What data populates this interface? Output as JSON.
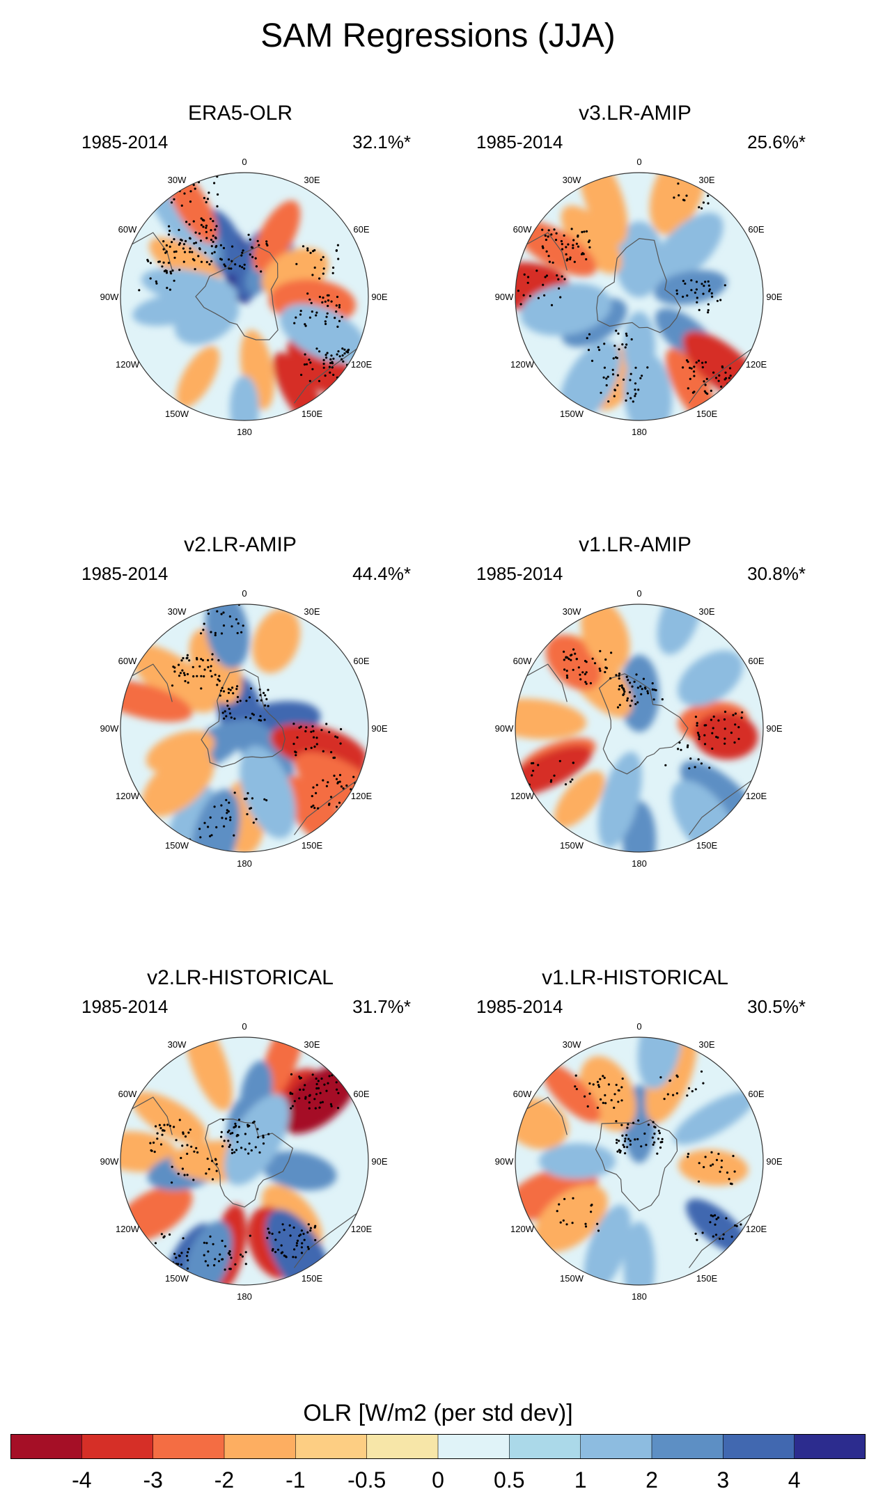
{
  "figure_title": "SAM Regressions (JJA)",
  "colors": {
    "levels": [
      "#a50f26",
      "#d62f27",
      "#f46d43",
      "#fdae61",
      "#fdce83",
      "#f7e6a8",
      "#e0f3f8",
      "#abd9e9",
      "#8dbce0",
      "#5d8fc4",
      "#4168b0",
      "#2c2c8e"
    ],
    "coast": "#555555",
    "stipple": "#000000"
  },
  "panels": [
    {
      "title": "ERA5-OLR",
      "period": "1985-2014",
      "variance": "32.1%*",
      "blobs": [
        [
          -12,
          0.25,
          4
        ],
        [
          20,
          0.28,
          3
        ],
        [
          40,
          0.32,
          2
        ],
        [
          -24,
          0.48,
          3
        ],
        [
          -35,
          0.72,
          2
        ],
        [
          -40,
          0.78,
          1
        ],
        [
          28,
          0.55,
          -2
        ],
        [
          65,
          0.45,
          -1
        ],
        [
          95,
          0.55,
          -2
        ],
        [
          132,
          0.82,
          -3
        ],
        [
          150,
          0.88,
          -3
        ],
        [
          -60,
          0.55,
          -1
        ],
        [
          170,
          0.6,
          -1
        ],
        [
          -150,
          0.75,
          -1
        ],
        [
          180,
          0.9,
          1
        ],
        [
          -100,
          0.6,
          1
        ],
        [
          -80,
          0.45,
          1
        ],
        [
          -30,
          0.85,
          -2
        ],
        [
          115,
          0.7,
          1
        ],
        [
          -120,
          0.35,
          1
        ]
      ],
      "stipple": [
        [
          0,
          0.32,
          3
        ],
        [
          -15,
          0.38,
          5
        ],
        [
          -40,
          0.65,
          9
        ],
        [
          -25,
          0.95,
          5
        ],
        [
          130,
          0.85,
          10
        ],
        [
          100,
          0.6,
          7
        ],
        [
          65,
          0.65,
          4
        ],
        [
          -75,
          0.7,
          4
        ],
        [
          -55,
          0.58,
          5
        ]
      ]
    },
    {
      "title": "v3.LR-AMIP",
      "period": "1985-2014",
      "variance": "25.6%*",
      "blobs": [
        [
          0,
          0.3,
          1
        ],
        [
          -40,
          0.6,
          -1
        ],
        [
          -60,
          0.78,
          -2
        ],
        [
          -85,
          0.9,
          -3
        ],
        [
          20,
          0.9,
          -1
        ],
        [
          -20,
          0.85,
          -1
        ],
        [
          45,
          0.55,
          1
        ],
        [
          80,
          0.42,
          2
        ],
        [
          130,
          0.5,
          2
        ],
        [
          150,
          0.85,
          -2
        ],
        [
          130,
          0.9,
          -3
        ],
        [
          -120,
          0.42,
          2
        ],
        [
          -160,
          0.7,
          -1
        ],
        [
          -150,
          0.8,
          1
        ],
        [
          180,
          0.4,
          1
        ],
        [
          175,
          0.8,
          1
        ],
        [
          -100,
          0.6,
          1
        ]
      ],
      "stipple": [
        [
          -55,
          0.72,
          9
        ],
        [
          -85,
          0.8,
          4
        ],
        [
          90,
          0.5,
          6
        ],
        [
          -150,
          0.45,
          4
        ],
        [
          140,
          0.85,
          8
        ],
        [
          -170,
          0.72,
          6
        ],
        [
          30,
          0.95,
          3
        ]
      ]
    },
    {
      "title": "v2.LR-AMIP",
      "period": "1985-2014",
      "variance": "44.4%*",
      "blobs": [
        [
          -15,
          0.15,
          3
        ],
        [
          80,
          0.25,
          3
        ],
        [
          140,
          0.25,
          2
        ],
        [
          -120,
          0.35,
          2
        ],
        [
          -25,
          0.55,
          -1
        ],
        [
          -55,
          0.7,
          -1
        ],
        [
          -75,
          0.85,
          -2
        ],
        [
          -10,
          0.8,
          2
        ],
        [
          20,
          0.75,
          -1
        ],
        [
          105,
          0.62,
          -3
        ],
        [
          110,
          0.72,
          -3
        ],
        [
          120,
          0.9,
          -2
        ],
        [
          140,
          0.9,
          -2
        ],
        [
          180,
          0.72,
          -1
        ],
        [
          -150,
          0.85,
          1
        ],
        [
          -165,
          0.9,
          2
        ],
        [
          -130,
          0.7,
          -1
        ],
        [
          -110,
          0.55,
          -1
        ],
        [
          160,
          0.55,
          1
        ]
      ],
      "stipple": [
        [
          0,
          0.2,
          9
        ],
        [
          -40,
          0.6,
          9
        ],
        [
          -10,
          0.9,
          5
        ],
        [
          100,
          0.6,
          6
        ],
        [
          125,
          0.9,
          6
        ],
        [
          180,
          0.65,
          4
        ],
        [
          -160,
          0.82,
          3
        ]
      ]
    },
    {
      "title": "v1.LR-AMIP",
      "period": "1985-2014",
      "variance": "30.8%*",
      "blobs": [
        [
          0,
          0.28,
          2
        ],
        [
          -40,
          0.55,
          -1
        ],
        [
          -45,
          0.75,
          -2
        ],
        [
          -20,
          0.8,
          -1
        ],
        [
          85,
          0.6,
          -2
        ],
        [
          95,
          0.7,
          -3
        ],
        [
          55,
          0.7,
          1
        ],
        [
          -110,
          0.7,
          -2
        ],
        [
          -115,
          0.82,
          -3
        ],
        [
          -140,
          0.75,
          -1
        ],
        [
          130,
          0.85,
          2
        ],
        [
          145,
          0.92,
          1
        ],
        [
          180,
          0.9,
          2
        ],
        [
          -165,
          0.6,
          1
        ],
        [
          20,
          0.95,
          1
        ],
        [
          -85,
          0.85,
          -1
        ]
      ],
      "stipple": [
        [
          0,
          0.3,
          9
        ],
        [
          -40,
          0.65,
          8
        ],
        [
          90,
          0.65,
          6
        ],
        [
          -115,
          0.78,
          3
        ],
        [
          115,
          0.45,
          3
        ]
      ]
    },
    {
      "title": "v2.LR-HISTORICAL",
      "period": "1985-2014",
      "variance": "31.7%*",
      "blobs": [
        [
          0,
          0.2,
          2
        ],
        [
          40,
          0.65,
          -3
        ],
        [
          50,
          0.78,
          -4
        ],
        [
          20,
          0.88,
          -2
        ],
        [
          -20,
          0.85,
          -1
        ],
        [
          10,
          0.55,
          2
        ],
        [
          -60,
          0.7,
          -1
        ],
        [
          -85,
          0.88,
          -1
        ],
        [
          -120,
          0.85,
          -2
        ],
        [
          140,
          0.6,
          -1
        ],
        [
          160,
          0.7,
          -3
        ],
        [
          -170,
          0.7,
          -3
        ],
        [
          150,
          0.88,
          3
        ],
        [
          -150,
          0.92,
          3
        ],
        [
          -160,
          0.85,
          2
        ],
        [
          -100,
          0.5,
          2
        ],
        [
          100,
          0.45,
          2
        ],
        [
          -90,
          0.2,
          -1
        ],
        [
          30,
          0.2,
          1
        ]
      ],
      "stipple": [
        [
          0,
          0.2,
          9
        ],
        [
          45,
          0.8,
          9
        ],
        [
          150,
          0.75,
          9
        ],
        [
          -170,
          0.75,
          6
        ],
        [
          -70,
          0.6,
          6
        ],
        [
          -140,
          0.95,
          5
        ],
        [
          -95,
          0.4,
          4
        ]
      ]
    },
    {
      "title": "v1.LR-HISTORICAL",
      "period": "1985-2014",
      "variance": "30.5%*",
      "blobs": [
        [
          0,
          0.3,
          2
        ],
        [
          -25,
          0.6,
          -1
        ],
        [
          -45,
          0.78,
          -2
        ],
        [
          20,
          0.75,
          -1
        ],
        [
          60,
          0.7,
          1
        ],
        [
          95,
          0.6,
          -1
        ],
        [
          -110,
          0.75,
          -2
        ],
        [
          -130,
          0.72,
          -1
        ],
        [
          130,
          0.82,
          3
        ],
        [
          180,
          0.85,
          1
        ],
        [
          -160,
          0.75,
          1
        ],
        [
          -90,
          0.5,
          1
        ],
        [
          10,
          0.95,
          1
        ],
        [
          -70,
          0.88,
          -1
        ]
      ],
      "stipple": [
        [
          0,
          0.2,
          9
        ],
        [
          -30,
          0.65,
          6
        ],
        [
          95,
          0.58,
          4
        ],
        [
          -130,
          0.68,
          3
        ],
        [
          130,
          0.85,
          4
        ],
        [
          30,
          0.7,
          3
        ]
      ]
    }
  ],
  "lon_labels": [
    "0",
    "30E",
    "60E",
    "90E",
    "120E",
    "150E",
    "180",
    "150W",
    "120W",
    "90W",
    "60W",
    "30W"
  ],
  "chart_data": {
    "type": "polar_contour_map",
    "title": "SAM Regressions (JJA)",
    "variable": "OLR [W/m2 (per std dev)]",
    "projection": "south polar stereographic",
    "colorbar": {
      "title": "OLR [W/m2 (per std dev)]",
      "levels": [
        "-4",
        "-3",
        "-2",
        "-1",
        "-0.5",
        "0",
        "0.5",
        "1",
        "2",
        "3",
        "4"
      ]
    },
    "panels": [
      {
        "name": "ERA5-OLR",
        "period": "1985-2014",
        "variance_explained": "32.1%*"
      },
      {
        "name": "v3.LR-AMIP",
        "period": "1985-2014",
        "variance_explained": "25.6%*"
      },
      {
        "name": "v2.LR-AMIP",
        "period": "1985-2014",
        "variance_explained": "44.4%*"
      },
      {
        "name": "v1.LR-AMIP",
        "period": "1985-2014",
        "variance_explained": "30.8%*"
      },
      {
        "name": "v2.LR-HISTORICAL",
        "period": "1985-2014",
        "variance_explained": "31.7%*"
      },
      {
        "name": "v1.LR-HISTORICAL",
        "period": "1985-2014",
        "variance_explained": "30.5%*"
      }
    ]
  }
}
